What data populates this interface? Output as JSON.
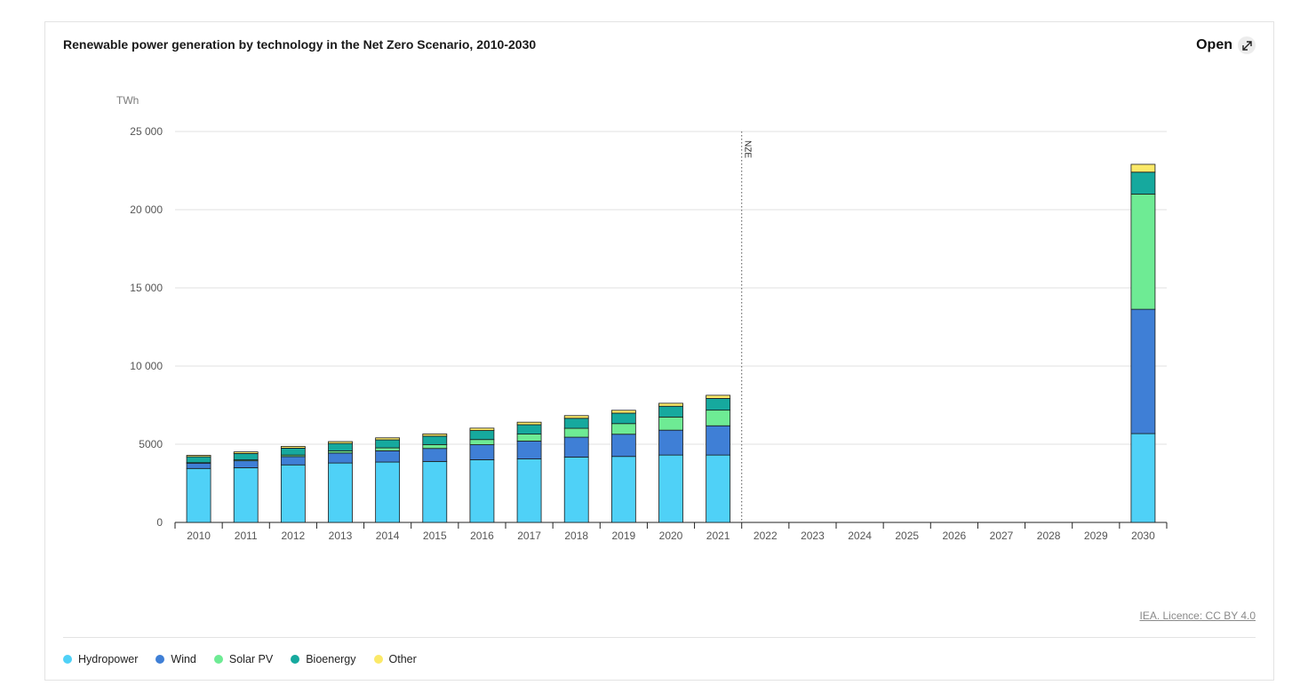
{
  "header": {
    "title": "Renewable power generation by technology in the Net Zero Scenario, 2010-2030",
    "open_label": "Open"
  },
  "footer": {
    "licence": "IEA. Licence: CC BY 4.0"
  },
  "legend": [
    {
      "name": "Hydropower",
      "color": "#4fd1f7"
    },
    {
      "name": "Wind",
      "color": "#3f7fd6"
    },
    {
      "name": "Solar PV",
      "color": "#6eeb94"
    },
    {
      "name": "Bioenergy",
      "color": "#16a99e"
    },
    {
      "name": "Other",
      "color": "#fbe968"
    }
  ],
  "chart_data": {
    "type": "bar",
    "stacked": true,
    "title": "Renewable power generation by technology in the Net Zero Scenario, 2010-2030",
    "ylabel": "TWh",
    "xlabel": "",
    "ylim": [
      0,
      25000
    ],
    "yticks": [
      0,
      5000,
      10000,
      15000,
      20000,
      25000
    ],
    "ytick_labels": [
      "0",
      "5000",
      "10 000",
      "15 000",
      "20 000",
      "25 000"
    ],
    "annotation": {
      "label": "NZE",
      "after_category": "2021"
    },
    "categories": [
      "2010",
      "2011",
      "2012",
      "2013",
      "2014",
      "2015",
      "2016",
      "2017",
      "2018",
      "2019",
      "2020",
      "2021",
      "2022",
      "2023",
      "2024",
      "2025",
      "2026",
      "2027",
      "2028",
      "2029",
      "2030"
    ],
    "series": [
      {
        "name": "Hydropower",
        "color": "#4fd1f7",
        "values": [
          3450,
          3500,
          3680,
          3800,
          3860,
          3900,
          4010,
          4060,
          4180,
          4220,
          4310,
          4310,
          null,
          null,
          null,
          null,
          null,
          null,
          null,
          null,
          5680
        ]
      },
      {
        "name": "Wind",
        "color": "#3f7fd6",
        "values": [
          340,
          440,
          530,
          640,
          720,
          830,
          960,
          1140,
          1270,
          1420,
          1590,
          1870,
          null,
          null,
          null,
          null,
          null,
          null,
          null,
          null,
          7950
        ]
      },
      {
        "name": "Solar PV",
        "color": "#6eeb94",
        "values": [
          30,
          60,
          100,
          140,
          190,
          250,
          330,
          450,
          570,
          680,
          840,
          1000,
          null,
          null,
          null,
          null,
          null,
          null,
          null,
          null,
          7370
        ]
      },
      {
        "name": "Bioenergy",
        "color": "#16a99e",
        "values": [
          380,
          410,
          440,
          470,
          510,
          540,
          580,
          600,
          640,
          670,
          690,
          750,
          null,
          null,
          null,
          null,
          null,
          null,
          null,
          null,
          1400
        ]
      },
      {
        "name": "Other",
        "color": "#fbe968",
        "values": [
          90,
          100,
          110,
          120,
          130,
          140,
          150,
          160,
          170,
          180,
          190,
          200,
          null,
          null,
          null,
          null,
          null,
          null,
          null,
          null,
          500
        ]
      }
    ]
  }
}
